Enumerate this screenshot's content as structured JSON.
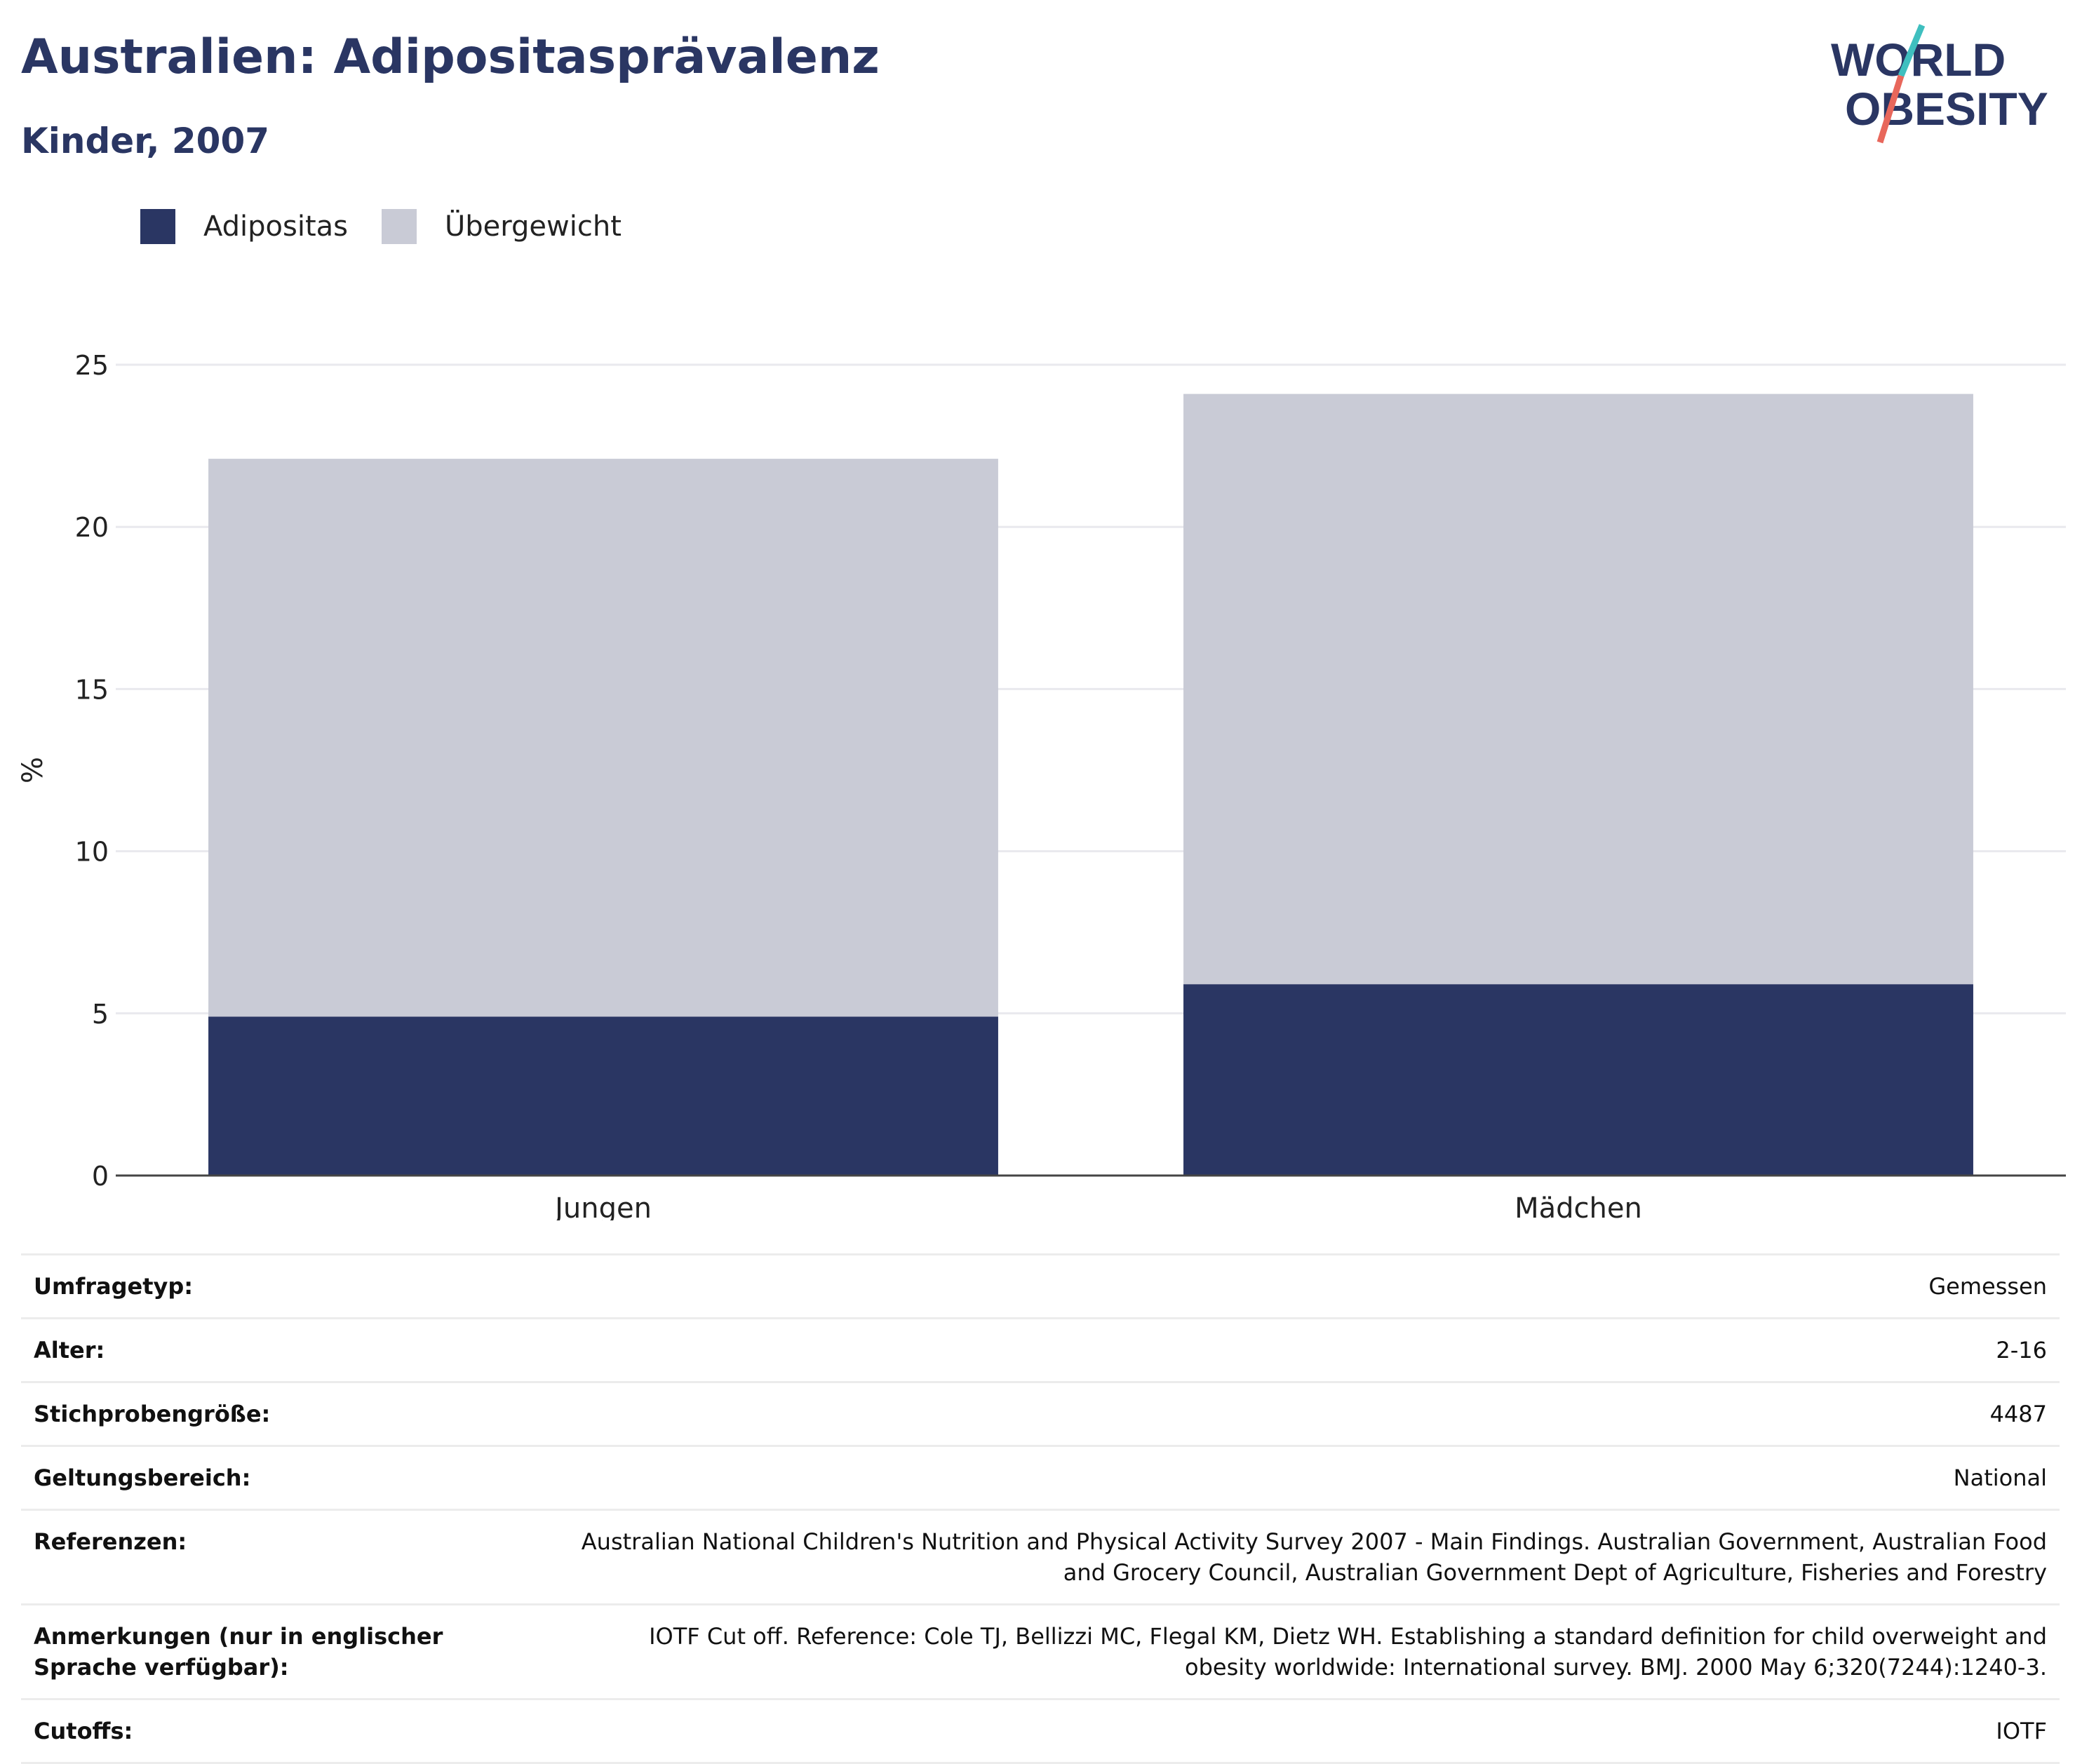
{
  "header": {
    "title": "Australien: Adipositasprävalenz",
    "subtitle": "Kinder, 2007"
  },
  "logo": {
    "line1": "WORLD",
    "line2": "OBESITY",
    "accent_colors": [
      "#3fbfbf",
      "#e8675b"
    ]
  },
  "colors": {
    "obesity": "#2a3663",
    "overweight": "#c9cbd6",
    "text": "#2a3663",
    "grid": "#e9e9ee",
    "axis": "#444444"
  },
  "chart_data": {
    "type": "bar",
    "stacked": true,
    "categories": [
      "Jungen",
      "Mädchen"
    ],
    "series": [
      {
        "name": "Adipositas",
        "values": [
          4.9,
          5.9
        ],
        "color": "#2a3663"
      },
      {
        "name": "Übergewicht",
        "values": [
          17.2,
          18.2
        ],
        "color": "#c9cbd6"
      }
    ],
    "ylabel": "%",
    "ylim": [
      0,
      25
    ],
    "yticks": [
      0,
      5,
      10,
      15,
      20,
      25
    ],
    "grid": true,
    "legend_position": "top-left"
  },
  "meta": [
    {
      "label": "Umfragetyp:",
      "value": "Gemessen"
    },
    {
      "label": "Alter:",
      "value": "2-16"
    },
    {
      "label": "Stichprobengröße:",
      "value": "4487"
    },
    {
      "label": "Geltungsbereich:",
      "value": "National"
    },
    {
      "label": "Referenzen:",
      "value": "Australian National Children's Nutrition and Physical Activity Survey 2007 - Main Findings. Australian Government, Australian Food and Grocery Council, Australian Government Dept of Agriculture, Fisheries and Forestry"
    },
    {
      "label": "Anmerkungen (nur in englischer Sprache verfügbar):",
      "value": "IOTF Cut off. Reference: Cole TJ, Bellizzi MC, Flegal KM, Dietz WH. Establishing a standard definition for child overweight and obesity worldwide: International survey. BMJ. 2000 May 6;320(7244):1240-3."
    },
    {
      "label": "Cutoffs:",
      "value": "IOTF"
    }
  ]
}
